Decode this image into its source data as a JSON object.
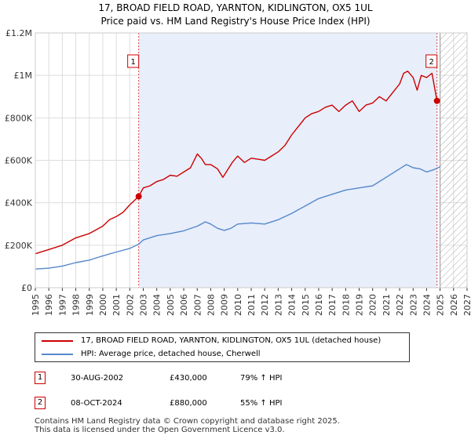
{
  "chart_data": {
    "type": "line",
    "title": "17, BROAD FIELD ROAD, YARNTON, KIDLINGTON, OX5 1UL",
    "subtitle": "Price paid vs. HM Land Registry's House Price Index (HPI)",
    "xlim": [
      1995,
      2027
    ],
    "ylim": [
      0,
      1200000
    ],
    "x_ticks": [
      "1995",
      "1996",
      "1997",
      "1998",
      "1999",
      "2000",
      "2001",
      "2002",
      "2003",
      "2004",
      "2005",
      "2006",
      "2007",
      "2008",
      "2009",
      "2010",
      "2011",
      "2012",
      "2013",
      "2014",
      "2015",
      "2016",
      "2017",
      "2018",
      "2019",
      "2020",
      "2021",
      "2022",
      "2023",
      "2024",
      "2025",
      "2026",
      "2027"
    ],
    "y_ticks": [
      {
        "value": 0,
        "label": "£0"
      },
      {
        "value": 200000,
        "label": "£200K"
      },
      {
        "value": 400000,
        "label": "£400K"
      },
      {
        "value": 600000,
        "label": "£600K"
      },
      {
        "value": 800000,
        "label": "£800K"
      },
      {
        "value": 1000000,
        "label": "£1M"
      },
      {
        "value": 1200000,
        "label": "£1.2M"
      }
    ],
    "ownership_shading": {
      "from": 2002.66,
      "to": 2024.77
    },
    "future_hatch_from": 2025.0,
    "series": [
      {
        "name": "17, BROAD FIELD ROAD, YARNTON, KIDLINGTON, OX5 1UL (detached house)",
        "color": "#cc0000",
        "x": [
          1995.0,
          1996.0,
          1997.0,
          1998.0,
          1999.0,
          2000.0,
          2000.5,
          2001.0,
          2001.5,
          2002.0,
          2002.66,
          2003.0,
          2003.5,
          2004.0,
          2004.5,
          2005.0,
          2005.5,
          2006.0,
          2006.5,
          2007.0,
          2007.3,
          2007.6,
          2008.0,
          2008.5,
          2008.9,
          2009.2,
          2009.6,
          2010.0,
          2010.5,
          2011.0,
          2011.5,
          2012.0,
          2012.5,
          2013.0,
          2013.5,
          2014.0,
          2014.5,
          2015.0,
          2015.5,
          2016.0,
          2016.5,
          2017.0,
          2017.5,
          2018.0,
          2018.5,
          2019.0,
          2019.5,
          2020.0,
          2020.5,
          2021.0,
          2021.5,
          2022.0,
          2022.3,
          2022.6,
          2023.0,
          2023.3,
          2023.6,
          2024.0,
          2024.4,
          2024.77,
          2024.95
        ],
        "values": [
          160000,
          180000,
          200000,
          235000,
          255000,
          290000,
          320000,
          335000,
          355000,
          390000,
          430000,
          470000,
          480000,
          500000,
          510000,
          530000,
          525000,
          545000,
          565000,
          630000,
          610000,
          580000,
          580000,
          560000,
          520000,
          550000,
          590000,
          620000,
          590000,
          610000,
          605000,
          600000,
          620000,
          640000,
          670000,
          720000,
          760000,
          800000,
          820000,
          830000,
          850000,
          860000,
          830000,
          860000,
          880000,
          830000,
          860000,
          870000,
          900000,
          880000,
          920000,
          960000,
          1010000,
          1020000,
          990000,
          930000,
          1000000,
          990000,
          1010000,
          880000,
          880000
        ],
        "markers": [
          {
            "x": 2002.66,
            "y": 430000
          },
          {
            "x": 2024.77,
            "y": 880000
          }
        ]
      },
      {
        "name": "HPI: Average price, detached house, Cherwell",
        "color": "#5588cc",
        "x": [
          1995.0,
          1996.0,
          1997.0,
          1998.0,
          1999.0,
          2000.0,
          2001.0,
          2002.0,
          2002.66,
          2003.0,
          2004.0,
          2005.0,
          2006.0,
          2007.0,
          2007.6,
          2008.0,
          2008.5,
          2009.0,
          2009.5,
          2010.0,
          2011.0,
          2012.0,
          2013.0,
          2014.0,
          2015.0,
          2016.0,
          2017.0,
          2018.0,
          2019.0,
          2020.0,
          2021.0,
          2022.0,
          2022.5,
          2023.0,
          2023.5,
          2024.0,
          2024.5,
          2025.0
        ],
        "values": [
          88000,
          92000,
          102000,
          118000,
          130000,
          150000,
          168000,
          185000,
          205000,
          225000,
          245000,
          255000,
          268000,
          290000,
          310000,
          300000,
          280000,
          270000,
          280000,
          300000,
          305000,
          300000,
          320000,
          350000,
          385000,
          420000,
          440000,
          460000,
          470000,
          480000,
          520000,
          560000,
          580000,
          565000,
          560000,
          545000,
          555000,
          570000
        ]
      }
    ]
  },
  "legend": {
    "items": [
      {
        "label": "17, BROAD FIELD ROAD, YARNTON, KIDLINGTON, OX5 1UL (detached house)",
        "color": "#cc0000"
      },
      {
        "label": "HPI: Average price, detached house, Cherwell",
        "color": "#5588cc"
      }
    ]
  },
  "transactions": [
    {
      "num": "1",
      "date": "30-AUG-2002",
      "price": "£430,000",
      "hpi": "79% ↑ HPI"
    },
    {
      "num": "2",
      "date": "08-OCT-2024",
      "price": "£880,000",
      "hpi": "55% ↑ HPI"
    }
  ],
  "footer": {
    "line1": "Contains HM Land Registry data © Crown copyright and database right 2025.",
    "line2": "This data is licensed under the Open Government Licence v3.0."
  }
}
